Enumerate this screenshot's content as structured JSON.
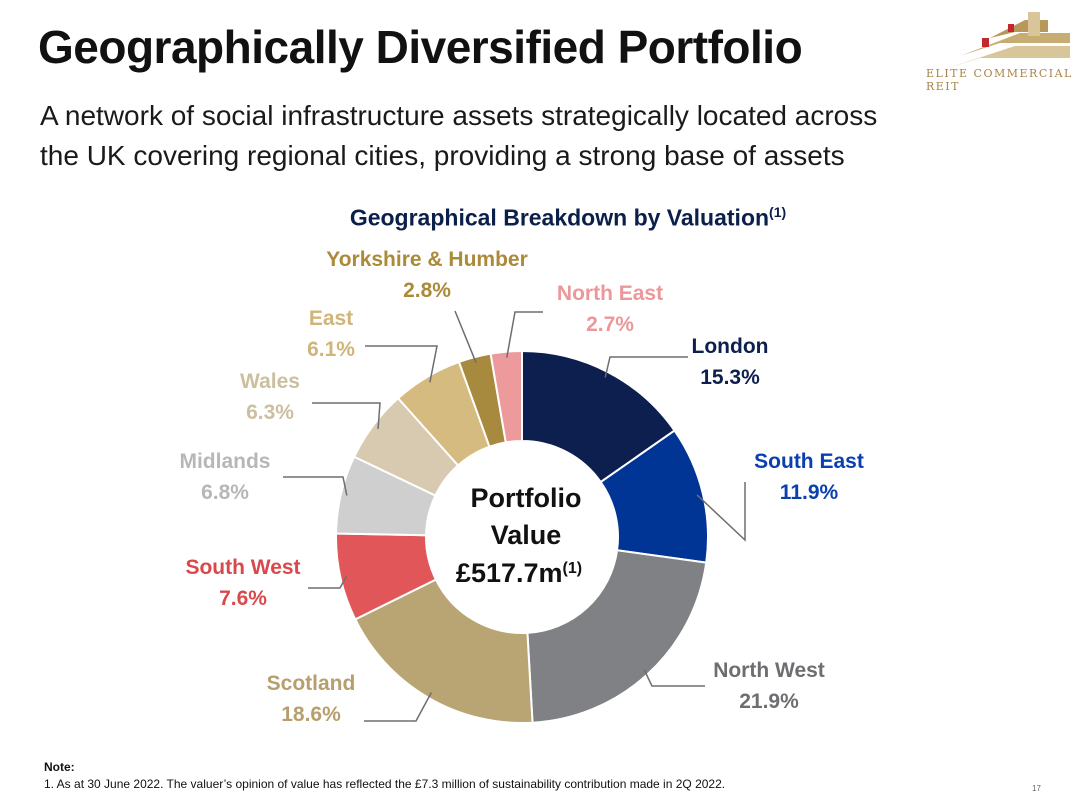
{
  "slide": {
    "title": "Geographically Diversified Portfolio",
    "subtitle_lines": [
      "A network of social infrastructure assets strategically located across",
      "the UK covering regional cities, providing a strong base of assets"
    ],
    "logo_text": "ELITE COMMERCIAL REIT",
    "note_title": "Note:",
    "note_text": "1. As at 30 June 2022. The valuer’s opinion of value has reflected the £7.3 million of sustainability contribution made in 2Q 2022.",
    "page_number": "17"
  },
  "chart_data": {
    "type": "pie",
    "donut": true,
    "title": "Geographical Breakdown by Valuation",
    "title_sup": "(1)",
    "center_label": {
      "line1": "Portfolio",
      "line2": "Value",
      "line3": "£517.7m",
      "line3_sup": "(1)"
    },
    "start_angle_deg": 0,
    "direction": "clockwise",
    "slices": [
      {
        "name": "London",
        "value": 15.3,
        "label": "15.3%",
        "color": "#0d1f4f"
      },
      {
        "name": "South East",
        "value": 11.9,
        "label": "11.9%",
        "color": "#003595"
      },
      {
        "name": "North West",
        "value": 21.9,
        "label": "21.9%",
        "color": "#808184"
      },
      {
        "name": "Scotland",
        "value": 18.6,
        "label": "18.6%",
        "color": "#b9a473"
      },
      {
        "name": "South West",
        "value": 7.6,
        "label": "7.6%",
        "color": "#e15759"
      },
      {
        "name": "Midlands",
        "value": 6.8,
        "label": "6.8%",
        "color": "#cfcfcf"
      },
      {
        "name": "Wales",
        "value": 6.3,
        "label": "6.3%",
        "color": "#d7cab0"
      },
      {
        "name": "East",
        "value": 6.1,
        "label": "6.1%",
        "color": "#d5bb7f"
      },
      {
        "name": "Yorkshire & Humber",
        "value": 2.8,
        "label": "2.8%",
        "color": "#a78a3e"
      },
      {
        "name": "North East",
        "value": 2.7,
        "label": "2.7%",
        "color": "#ed9a9c"
      }
    ],
    "label_colors": {
      "London": "#0d1f4f",
      "South East": "#0a3fb0",
      "North West": "#6d6e71",
      "Scotland": "#b69f6c",
      "South West": "#d9494c",
      "Midlands": "#b7b7b7",
      "Wales": "#cbbf9f",
      "East": "#d0b57b",
      "Yorkshire & Humber": "#ab8a3a",
      "North East": "#ec9799"
    }
  }
}
